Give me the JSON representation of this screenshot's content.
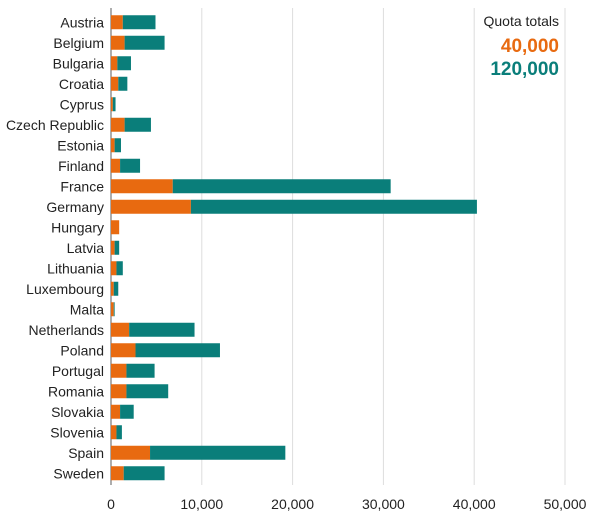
{
  "chart_data": {
    "type": "bar",
    "orientation": "horizontal",
    "stacked": true,
    "categories": [
      "Austria",
      "Belgium",
      "Bulgaria",
      "Croatia",
      "Cyprus",
      "Czech Republic",
      "Estonia",
      "Finland",
      "France",
      "Germany",
      "Hungary",
      "Latvia",
      "Lithuania",
      "Luxembourg",
      "Malta",
      "Netherlands",
      "Poland",
      "Portugal",
      "Romania",
      "Slovakia",
      "Slovenia",
      "Spain",
      "Sweden"
    ],
    "series": [
      {
        "name": "40,000",
        "color": "#e86a10",
        "values": [
          1300,
          1500,
          700,
          800,
          200,
          1500,
          400,
          1000,
          6800,
          8800,
          900,
          400,
          600,
          300,
          300,
          2000,
          2700,
          1700,
          1700,
          1000,
          600,
          4300,
          1400
        ]
      },
      {
        "name": "120,000",
        "color": "#0a7e7a",
        "values": [
          3600,
          4400,
          1500,
          1000,
          300,
          2900,
          700,
          2200,
          24000,
          31500,
          0,
          500,
          700,
          500,
          100,
          7200,
          9300,
          3100,
          4600,
          1500,
          600,
          14900,
          4500
        ]
      }
    ],
    "xlim": [
      0,
      50000
    ],
    "xticks": [
      "0",
      "10,000",
      "20,000",
      "30,000",
      "40,000",
      "50,000"
    ],
    "xtick_values": [
      0,
      10000,
      20000,
      30000,
      40000,
      50000
    ],
    "grid": true,
    "legend": {
      "title": "Quota totals",
      "placement": "top-right",
      "items": [
        "40,000",
        "120,000"
      ]
    }
  }
}
